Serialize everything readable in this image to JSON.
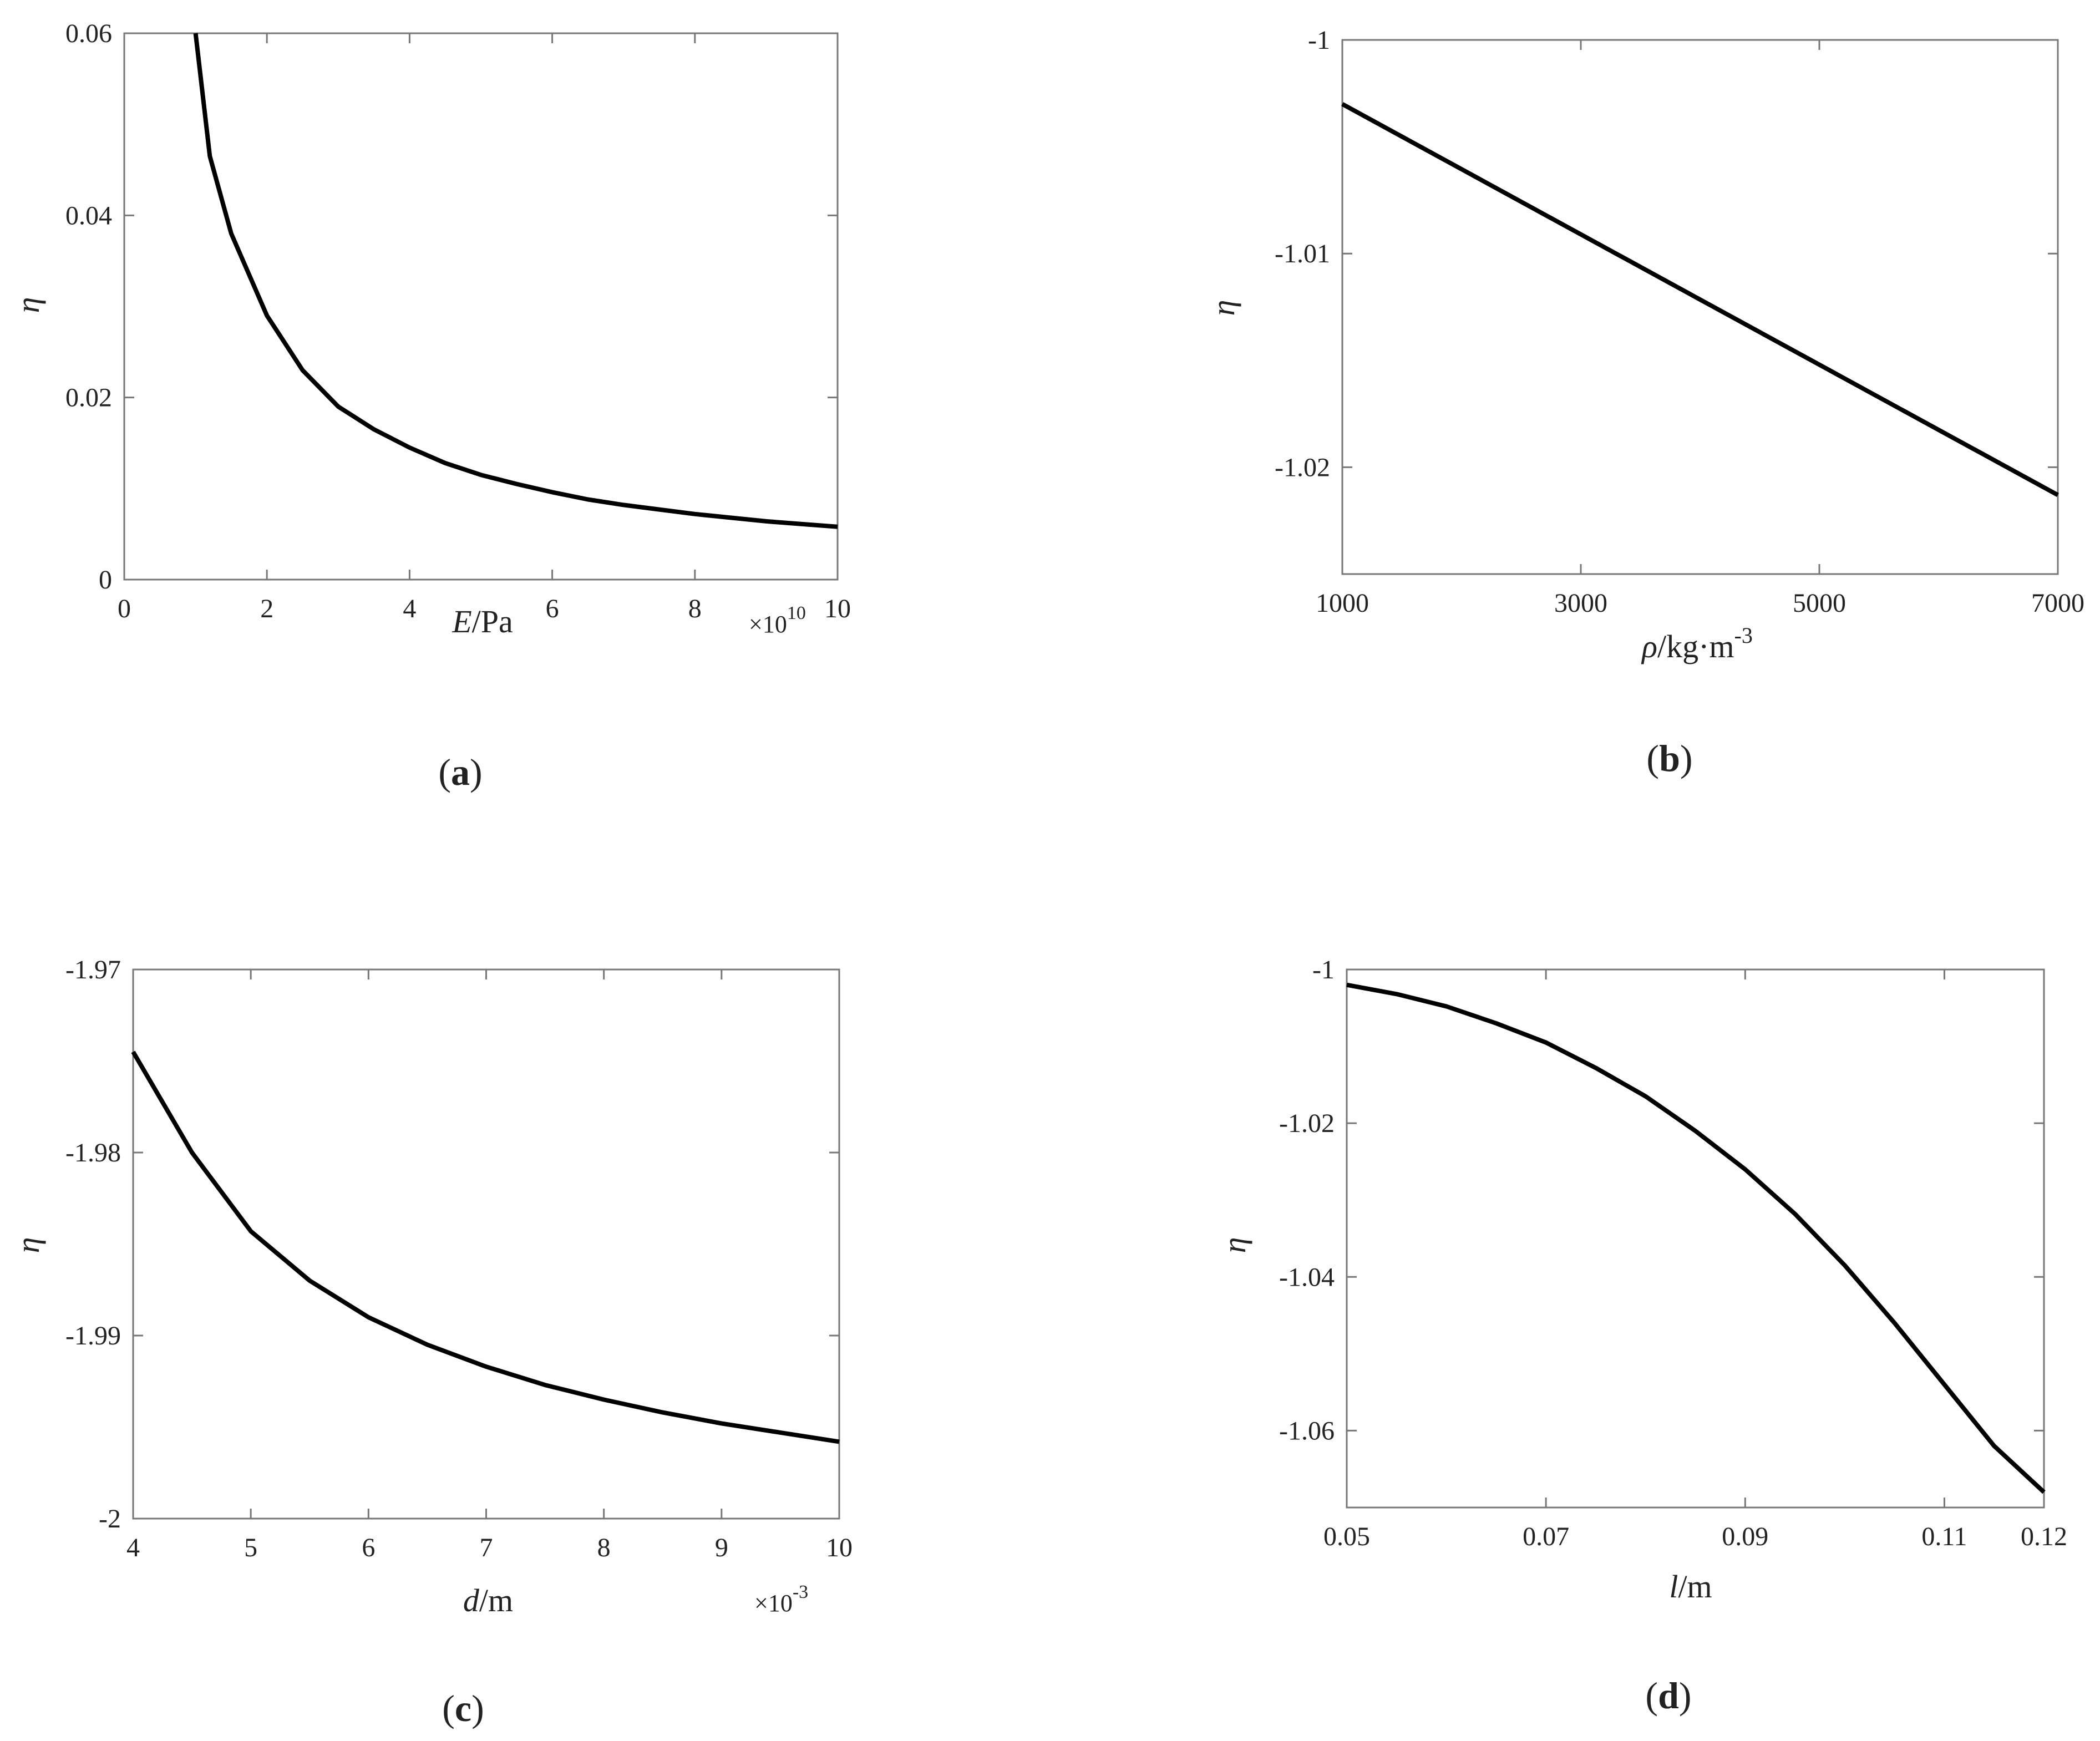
{
  "colors": {
    "curve": "#000000",
    "axes": "#777777",
    "text": "#222222"
  },
  "chart_data": [
    {
      "id": "a",
      "type": "line",
      "caption_letter": "a",
      "xlabel_italic": "E",
      "xlabel_rest": "/Pa",
      "ylabel": "η",
      "x_exponent_base": "×10",
      "x_exponent_power": "10",
      "xlim": [
        0,
        10
      ],
      "ylim": [
        0,
        0.06
      ],
      "xticks": [
        0,
        2,
        4,
        6,
        8,
        10
      ],
      "xtick_labels": [
        "0",
        "2",
        "4",
        "6",
        "8",
        "10"
      ],
      "yticks": [
        0,
        0.02,
        0.04,
        0.06
      ],
      "ytick_labels": [
        "0",
        "0.02",
        "0.04",
        "0.06"
      ],
      "grid": false,
      "series": [
        {
          "x": [
            1.0,
            1.2,
            1.5,
            2.0,
            2.5,
            3.0,
            3.5,
            4.0,
            4.5,
            5.0,
            5.5,
            6.0,
            6.5,
            7.0,
            7.5,
            8.0,
            8.5,
            9.0,
            9.5,
            10.0
          ],
          "y": [
            0.06,
            0.0465,
            0.038,
            0.029,
            0.023,
            0.019,
            0.0165,
            0.0145,
            0.0128,
            0.0115,
            0.0105,
            0.0096,
            0.0088,
            0.0082,
            0.0077,
            0.0072,
            0.0068,
            0.0064,
            0.0061,
            0.0058
          ]
        }
      ]
    },
    {
      "id": "b",
      "type": "line",
      "caption_letter": "b",
      "xlabel_italic": "ρ",
      "xlabel_rest": "/kg·m",
      "xlabel_sup": "-3",
      "ylabel": "η",
      "xlim": [
        1000,
        7000
      ],
      "ylim": [
        -1.025,
        -1.0
      ],
      "xticks": [
        1000,
        3000,
        5000,
        7000
      ],
      "xtick_labels": [
        "1000",
        "3000",
        "5000",
        "7000"
      ],
      "yticks": [
        -1.0,
        -1.01,
        -1.02
      ],
      "ytick_labels": [
        "-1",
        "-1.01",
        "-1.02"
      ],
      "grid": false,
      "series": [
        {
          "x": [
            1000,
            7000
          ],
          "y": [
            -1.003,
            -1.0213
          ]
        }
      ]
    },
    {
      "id": "c",
      "type": "line",
      "caption_letter": "c",
      "xlabel_italic": "d",
      "xlabel_rest": "/m",
      "ylabel": "η",
      "x_exponent_base": "×10",
      "x_exponent_power": "-3",
      "xlim": [
        4,
        10
      ],
      "ylim": [
        -2.0,
        -1.97
      ],
      "xticks": [
        4,
        5,
        6,
        7,
        8,
        9,
        10
      ],
      "xtick_labels": [
        "4",
        "5",
        "6",
        "7",
        "8",
        "9",
        "10"
      ],
      "yticks": [
        -1.97,
        -1.98,
        -1.99,
        -2.0
      ],
      "ytick_labels": [
        "-1.97",
        "-1.98",
        "-1.99",
        "-2"
      ],
      "grid": false,
      "series": [
        {
          "x": [
            4.0,
            4.5,
            5.0,
            5.5,
            6.0,
            6.5,
            7.0,
            7.5,
            8.0,
            8.5,
            9.0,
            9.5,
            10.0
          ],
          "y": [
            -1.9745,
            -1.98,
            -1.9843,
            -1.987,
            -1.989,
            -1.9905,
            -1.9917,
            -1.9927,
            -1.9935,
            -1.9942,
            -1.9948,
            -1.9953,
            -1.9958
          ]
        }
      ]
    },
    {
      "id": "d",
      "type": "line",
      "caption_letter": "d",
      "xlabel_italic": "l",
      "xlabel_rest": "/m",
      "ylabel": "η",
      "xlim": [
        0.05,
        0.12
      ],
      "ylim": [
        -1.07,
        -1.0
      ],
      "xticks": [
        0.05,
        0.07,
        0.09,
        0.11,
        0.12
      ],
      "xtick_labels": [
        "0.05",
        "0.07",
        "0.09",
        "0.11",
        "0.12"
      ],
      "yticks": [
        -1.0,
        -1.02,
        -1.04,
        -1.06
      ],
      "ytick_labels": [
        "-1",
        "-1.02",
        "-1.04",
        "-1.06"
      ],
      "grid": false,
      "series": [
        {
          "x": [
            0.05,
            0.055,
            0.06,
            0.065,
            0.07,
            0.075,
            0.08,
            0.085,
            0.09,
            0.095,
            0.1,
            0.105,
            0.11,
            0.115,
            0.12
          ],
          "y": [
            -1.002,
            -1.0032,
            -1.0048,
            -1.007,
            -1.0095,
            -1.0128,
            -1.0165,
            -1.021,
            -1.026,
            -1.0318,
            -1.0385,
            -1.046,
            -1.054,
            -1.062,
            -1.068
          ]
        }
      ]
    }
  ]
}
